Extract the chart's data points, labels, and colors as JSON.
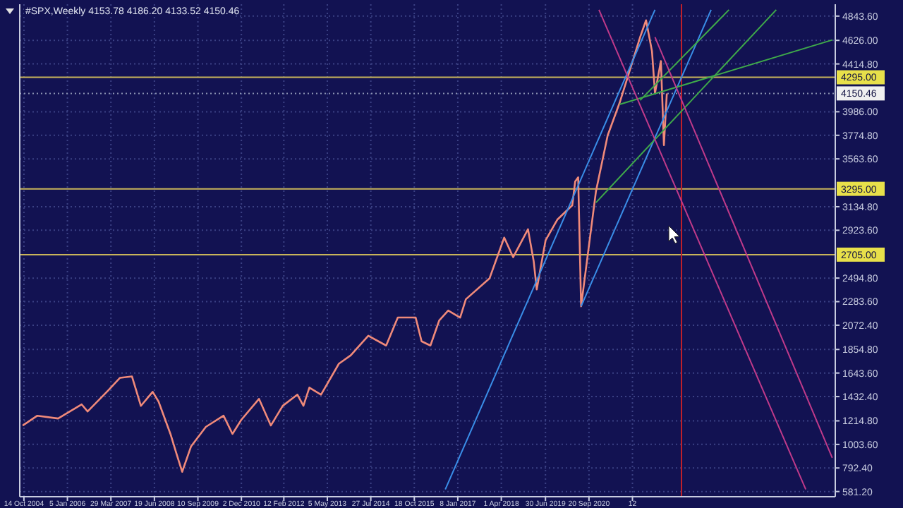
{
  "chart_data": {
    "type": "line",
    "title": "#SPX,Weekly  4153.78 4186.20 4133.52 4150.46",
    "x": [
      "2004-10",
      "2005-03",
      "2005-10",
      "2006-06",
      "2006-08",
      "2007-03",
      "2007-07",
      "2007-11",
      "2008-02",
      "2008-06",
      "2008-08",
      "2008-12",
      "2009-02",
      "2009-04",
      "2009-07",
      "2009-12",
      "2010-06",
      "2010-09",
      "2010-12",
      "2011-06",
      "2011-10",
      "2012-02",
      "2012-07",
      "2012-09",
      "2012-11",
      "2013-03",
      "2013-09",
      "2014-01",
      "2014-07",
      "2015-01",
      "2015-05",
      "2015-11",
      "2016-01",
      "2016-04",
      "2016-07",
      "2016-10",
      "2017-02",
      "2017-04",
      "2017-12",
      "2018-05",
      "2018-08",
      "2019-01",
      "2019-03",
      "2019-04",
      "2019-07",
      "2019-11",
      "2020-04",
      "2020-05",
      "2020-06",
      "2020-07",
      "2020-12",
      "2021-04",
      "2021-08",
      "2021-12",
      "2022-03",
      "2022-05",
      "2022-07",
      "2022-08",
      "2022-10",
      "2022-11",
      "2022-12"
    ],
    "series": [
      {
        "color": "#f08a7a",
        "values": [
          1173,
          1261,
          1236,
          1362,
          1299,
          1488,
          1601,
          1613,
          1349,
          1475,
          1387,
          1098,
          922,
          758,
          985,
          1161,
          1261,
          1098,
          1224,
          1412,
          1173,
          1350,
          1450,
          1350,
          1513,
          1450,
          1727,
          1802,
          1978,
          1890,
          2141,
          2141,
          1928,
          1890,
          2116,
          2204,
          2141,
          2305,
          2493,
          2858,
          2682,
          2933,
          2644,
          2393,
          2833,
          3021,
          3147,
          3361,
          3398,
          2242,
          3273,
          3775,
          4064,
          4404,
          4655,
          4806,
          4529,
          4152,
          4441,
          3687,
          4150
        ]
      },
      {
        "type": "line",
        "color": "#3a8ee8",
        "x": [
          "2016-09",
          "2022-08"
        ],
        "values": [
          600,
          4900
        ]
      },
      {
        "type": "line",
        "color": "#3a8ee8",
        "x": [
          "2020-07",
          "2024-03"
        ],
        "values": [
          2242,
          4900
        ]
      },
      {
        "type": "line",
        "color": "#3faa4a",
        "x": [
          "2020-12",
          "2026-01"
        ],
        "values": [
          3172,
          4900
        ]
      },
      {
        "type": "line",
        "color": "#3faa4a",
        "x": [
          "2021-08",
          "2027-08"
        ],
        "values": [
          4052,
          4630
        ]
      },
      {
        "type": "line",
        "color": "#3faa4a",
        "x": [
          "2022-03",
          "2024-09"
        ],
        "values": [
          4089,
          4900
        ]
      },
      {
        "type": "line",
        "color": "#c03a8a",
        "x": [
          "2021-01",
          "2026-11"
        ],
        "values": [
          4900,
          600
        ]
      },
      {
        "type": "line",
        "color": "#c03a8a",
        "x": [
          "2022-08",
          "2027-08"
        ],
        "values": [
          4655,
          884
        ]
      }
    ],
    "xlim": [
      "2004-09-01",
      "2027-09"
    ],
    "xticks": [
      {
        "value": "2004-10-14",
        "label": "14 Oct 2004"
      },
      {
        "value": "2006-01-05",
        "label": "5 Jan 2006"
      },
      {
        "value": "2007-03-29",
        "label": "29 Mar 2007"
      },
      {
        "value": "2008-06-19",
        "label": "19 Jun 2008"
      },
      {
        "value": "2009-09-10",
        "label": "10 Sep 2009"
      },
      {
        "value": "2010-12-02",
        "label": "2 Dec 2010"
      },
      {
        "value": "2012-02-12",
        "label": "12 Feb 2012"
      },
      {
        "value": "2013-05-05",
        "label": "5 May 2013"
      },
      {
        "value": "2014-07-27",
        "label": "27 Jul 2014"
      },
      {
        "value": "2015-10-18",
        "label": "18 Oct 2015"
      },
      {
        "value": "2017-01-08",
        "label": "8 Jan 2017"
      },
      {
        "value": "2018-04-01",
        "label": "1 Apr 2018"
      },
      {
        "value": "2019-06-30",
        "label": "30 Jun 2019"
      },
      {
        "value": "2020-09-20",
        "label": "20 Sep 2020"
      },
      {
        "value": "2021-12-12",
        "label": "12"
      }
    ],
    "ylim": [
      560,
      4950
    ],
    "yticks": [
      {
        "value": 581.2,
        "label": "581.20"
      },
      {
        "value": 792.4,
        "label": "792.40"
      },
      {
        "value": 1003.6,
        "label": "1003.60"
      },
      {
        "value": 1214.8,
        "label": "1214.80"
      },
      {
        "value": 1432.4,
        "label": "1432.40"
      },
      {
        "value": 1643.6,
        "label": "1643.60"
      },
      {
        "value": 1854.8,
        "label": "1854.80"
      },
      {
        "value": 2072.4,
        "label": "2072.40"
      },
      {
        "value": 2283.6,
        "label": "2283.60"
      },
      {
        "value": 2494.8,
        "label": "2494.80"
      },
      {
        "value": 2923.6,
        "label": "2923.60"
      },
      {
        "value": 3134.8,
        "label": "3134.80"
      },
      {
        "value": 3563.6,
        "label": "3563.60"
      },
      {
        "value": 3774.8,
        "label": "3774.80"
      },
      {
        "value": 3986,
        "label": "3986.00"
      },
      {
        "value": 4414.8,
        "label": "4414.80"
      },
      {
        "value": 4626,
        "label": "4626.00"
      },
      {
        "value": 4843.6,
        "label": "4843.60"
      }
    ],
    "grid": true,
    "ref_lines": [
      {
        "axis": "y",
        "value": 4295,
        "label": "4295.00",
        "color": "#c8b45a"
      },
      {
        "axis": "y",
        "value": 3295,
        "label": "3295.00",
        "color": "#c8b45a"
      },
      {
        "axis": "y",
        "value": 2705,
        "label": "2705.00",
        "color": "#c8b45a"
      },
      {
        "axis": "y",
        "value": 4150.46,
        "label": "4150.46",
        "color": "#8890b0",
        "line_style": "dotted"
      },
      {
        "axis": "x",
        "value": "2023-05",
        "color": "#c0202a"
      }
    ]
  }
}
